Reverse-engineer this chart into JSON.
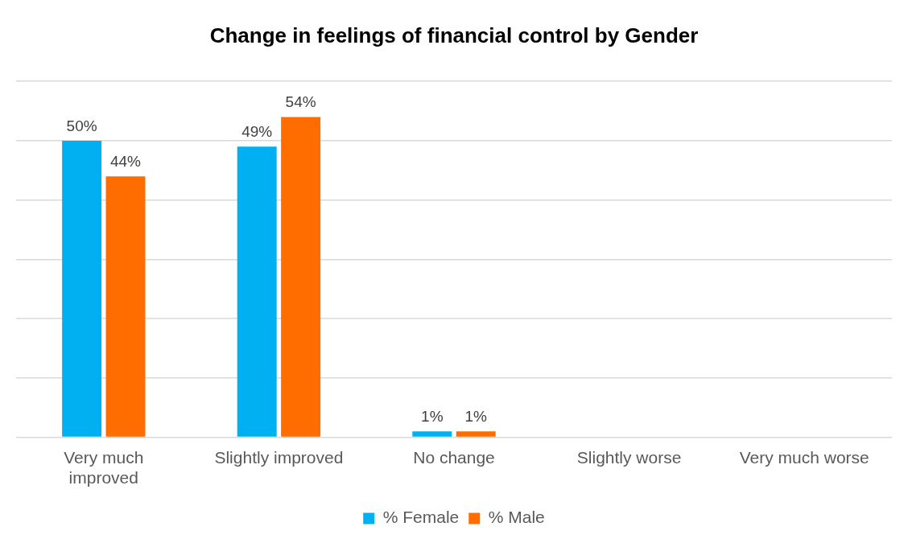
{
  "chart_data": {
    "type": "bar",
    "title": "Change in feelings of financial control by Gender",
    "categories": [
      "Very much improved",
      "Slightly improved",
      "No change",
      "Slightly worse",
      "Very much worse"
    ],
    "series": [
      {
        "name": "% Female",
        "color": "#00b0f0",
        "values": [
          50,
          49,
          1,
          null,
          null
        ],
        "value_labels": [
          "50%",
          "49%",
          "1%",
          null,
          null
        ]
      },
      {
        "name": "% Male",
        "color": "#ff6d00",
        "values": [
          44,
          54,
          1,
          null,
          null
        ],
        "value_labels": [
          "44%",
          "54%",
          "1%",
          null,
          null
        ]
      }
    ],
    "ylim": [
      0,
      60
    ],
    "yticks": [
      0,
      10,
      20,
      30,
      40,
      50,
      60
    ],
    "grid": "y",
    "legend": "bottom",
    "tick_labels": "x"
  }
}
